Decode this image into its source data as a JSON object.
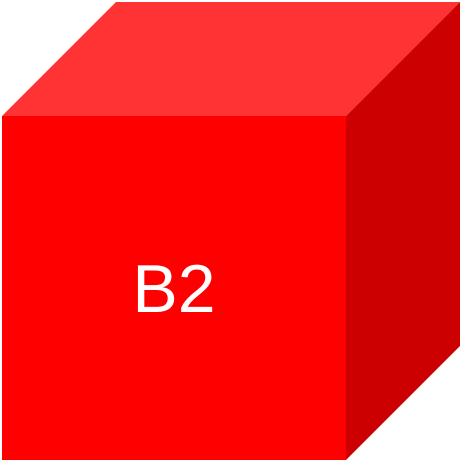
{
  "cube": {
    "label": "B2",
    "colors": {
      "front": "#ff0000",
      "top": "#ff3333",
      "side": "#cc0000",
      "label": "#ffffff",
      "background": "#ffffff"
    }
  }
}
